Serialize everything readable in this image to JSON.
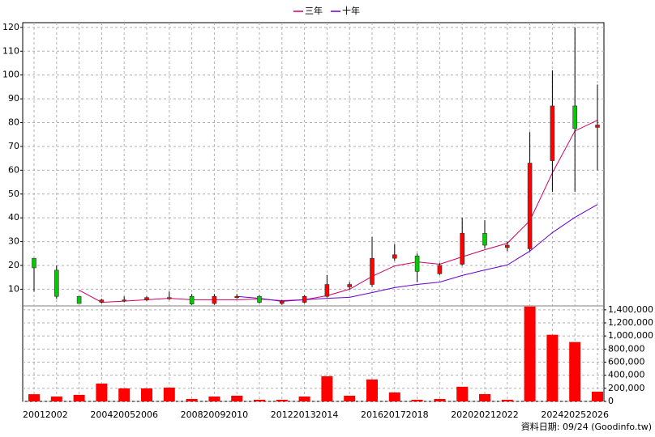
{
  "chart_data": {
    "type": "candlestick",
    "legend": "top",
    "grid": true,
    "categories": [
      "2001",
      "2002",
      null,
      "2004",
      "2005",
      "2006",
      null,
      "2008",
      "2009",
      "2010",
      null,
      "2012",
      "2013",
      "2014",
      null,
      "2016",
      "2017",
      "2018",
      null,
      "2020",
      "2021",
      "2022",
      null,
      "2024",
      "2025",
      "2026"
    ],
    "open": [
      23,
      18,
      7,
      4.5,
      5,
      5.5,
      6.5,
      7,
      4,
      6.5,
      7,
      4,
      4.5,
      7,
      11,
      12,
      23,
      24,
      16.5,
      20.5,
      33.5,
      27.5,
      27,
      64,
      87,
      78
    ],
    "high": [
      23,
      20,
      7,
      6,
      7,
      7,
      9,
      8,
      8,
      8,
      7.5,
      5.5,
      7.5,
      16,
      13,
      32,
      29,
      25,
      21,
      40,
      39,
      30,
      76,
      102,
      120,
      96
    ],
    "low": [
      9,
      6,
      4,
      4,
      4.5,
      5,
      5.5,
      3.5,
      3.5,
      6,
      4,
      3.5,
      4,
      6.5,
      10,
      11,
      22,
      13,
      16,
      20,
      27,
      26,
      26,
      51,
      51,
      60
    ],
    "close": [
      19,
      7,
      4,
      5.5,
      5.5,
      6.5,
      6.5,
      3.8,
      7,
      7,
      4.5,
      5,
      7,
      12,
      12,
      23,
      24.5,
      17.5,
      20,
      33.5,
      28.5,
      28.5,
      63,
      87,
      77.5,
      79
    ],
    "up_color": "#ff0000",
    "down_color": "#00cc00",
    "series": [
      {
        "name": "三年",
        "color": "#cc0066",
        "values": [
          null,
          null,
          9.6,
          4.5,
          5,
          5.6,
          6.2,
          5.6,
          5.6,
          5.6,
          5.9,
          5.2,
          5.6,
          7.3,
          10,
          15.4,
          19.8,
          21.5,
          20.5,
          23.6,
          26.6,
          29.3,
          38.8,
          58.9,
          76.5,
          81
        ]
      },
      {
        "name": "十年",
        "color": "#6600cc",
        "values": [
          null,
          null,
          null,
          null,
          null,
          null,
          null,
          null,
          null,
          7,
          6.2,
          4.9,
          5.6,
          6.2,
          6.6,
          8.6,
          10.7,
          12,
          13,
          15.8,
          18.1,
          20.2,
          26,
          33.8,
          40.2,
          45.6
        ]
      }
    ],
    "volume": {
      "axis": "y2",
      "color": "#ff0000",
      "values": [
        110000,
        75000,
        100000,
        273000,
        199000,
        199000,
        211000,
        37000,
        75000,
        87000,
        25000,
        25000,
        75000,
        385000,
        87000,
        335000,
        137000,
        25000,
        37000,
        224000,
        112000,
        25000,
        1450000,
        1019000,
        907000,
        149000
      ]
    },
    "ylim": [
      3,
      122
    ],
    "yticks": [
      10,
      20,
      30,
      40,
      50,
      60,
      70,
      80,
      90,
      100,
      110,
      120
    ],
    "y2lim": [
      0,
      1460000
    ],
    "y2ticks": [
      0,
      {
        "value": 200000,
        "label": "200,000"
      },
      {
        "value": 400000,
        "label": "400,000"
      },
      {
        "value": 600000,
        "label": "600,000"
      },
      {
        "value": 800000,
        "label": "800,000"
      },
      {
        "value": 1000000,
        "label": "1,000,000"
      },
      {
        "value": 1200000,
        "label": "1,200,000"
      },
      {
        "value": 1400000,
        "label": "1,400,000"
      }
    ],
    "footnote": "資料日期: 09/24 (Goodinfo.tw)"
  }
}
